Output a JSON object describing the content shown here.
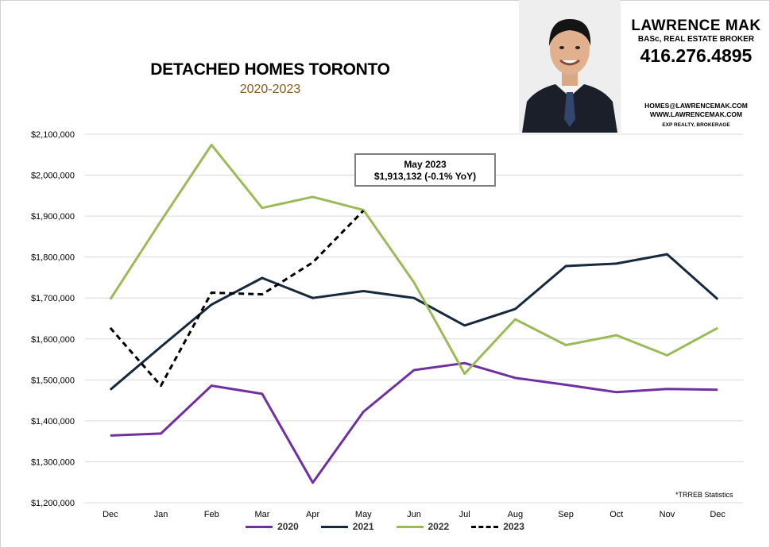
{
  "header": {
    "title": "DETACHED HOMES TORONTO",
    "subtitle": "2020-2023"
  },
  "agent": {
    "name": "LAWRENCE MAK",
    "credentials": "BASc, REAL ESTATE BROKER",
    "phone": "416.276.4895",
    "email": "HOMES@LAWRENCEMAK.COM",
    "website": "WWW.LAWRENCEMAK.COM",
    "brokerage": "EXP REALTY, BROKERAGE"
  },
  "callout": {
    "line1": "May 2023",
    "line2": "$1,913,132  (-0.1%  YoY)"
  },
  "source_note": "*TRREB Statistics",
  "colors": {
    "2020": "#7030a0",
    "2021": "#17293d",
    "2022": "#9bbb59",
    "2023": "#000000",
    "grid": "#d9d9d9"
  },
  "chart_data": {
    "type": "line",
    "title": "DETACHED HOMES TORONTO",
    "subtitle": "2020-2023",
    "categories": [
      "Dec",
      "Jan",
      "Feb",
      "Mar",
      "Apr",
      "May",
      "Jun",
      "Jul",
      "Aug",
      "Sep",
      "Oct",
      "Nov",
      "Dec"
    ],
    "ylim": [
      1200000,
      2100000
    ],
    "yticks": [
      1200000,
      1300000,
      1400000,
      1500000,
      1600000,
      1700000,
      1800000,
      1900000,
      2000000,
      2100000
    ],
    "ytick_labels": [
      "$1,200,000",
      "$1,300,000",
      "$1,400,000",
      "$1,500,000",
      "$1,600,000",
      "$1,700,000",
      "$1,800,000",
      "$1,900,000",
      "$2,000,000",
      "$2,100,000"
    ],
    "grid": true,
    "legend": "bottom",
    "series": [
      {
        "name": "2020",
        "style": "solid",
        "values": [
          1364000,
          1369000,
          1486000,
          1466000,
          1249000,
          1422000,
          1524000,
          1541000,
          1505000,
          1488000,
          1470000,
          1478000,
          1476000
        ]
      },
      {
        "name": "2021",
        "style": "solid",
        "values": [
          1476000,
          1581000,
          1684000,
          1749000,
          1700000,
          1717000,
          1700000,
          1633000,
          1673000,
          1778000,
          1784000,
          1807000,
          1697000
        ]
      },
      {
        "name": "2022",
        "style": "solid",
        "values": [
          1697000,
          1888000,
          2074000,
          1920000,
          1947000,
          1915000,
          1738000,
          1515000,
          1648000,
          1585000,
          1609000,
          1560000,
          1627000
        ]
      },
      {
        "name": "2023",
        "style": "dashed",
        "values": [
          1627000,
          1486000,
          1713000,
          1709000,
          1787000,
          1913132,
          null,
          null,
          null,
          null,
          null,
          null,
          null
        ]
      }
    ]
  }
}
